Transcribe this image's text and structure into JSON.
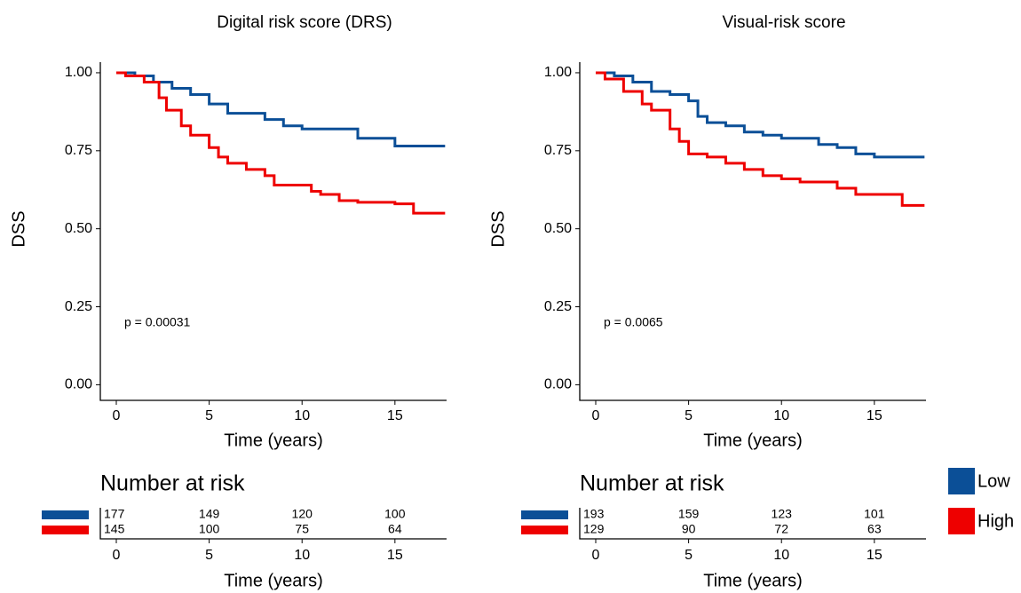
{
  "chart_data": [
    {
      "type": "step",
      "title": "Digital risk score (DRS)",
      "x_label": "Time (years)",
      "y_label": "DSS",
      "xlim": [
        -0.86,
        17.78
      ],
      "ylim": [
        -0.05,
        1.034
      ],
      "xticks": [
        0,
        5,
        10,
        15
      ],
      "yticks": [
        {
          "value": 0,
          "label": "0.00"
        },
        {
          "value": 0.25,
          "label": "0.25"
        },
        {
          "value": 0.5,
          "label": "0.50"
        },
        {
          "value": 0.75,
          "label": "0.75"
        },
        {
          "value": 1,
          "label": "1.00"
        }
      ],
      "annotation": "p = 0.00031",
      "series": [
        {
          "color": "#0b4f97",
          "x": [
            0,
            1,
            2,
            3,
            4,
            5,
            6,
            8,
            9,
            10,
            12,
            13,
            15,
            17.7
          ],
          "values": [
            1,
            0.99,
            0.97,
            0.95,
            0.93,
            0.9,
            0.87,
            0.85,
            0.83,
            0.82,
            0.82,
            0.79,
            0.765,
            0.765
          ]
        },
        {
          "color": "#ee0000",
          "x": [
            0,
            0.5,
            1.5,
            2.3,
            2.7,
            3.5,
            4,
            5,
            5.5,
            6,
            7,
            8,
            8.5,
            10,
            10.5,
            11,
            12,
            13,
            15,
            16,
            17.7
          ],
          "values": [
            1,
            0.99,
            0.97,
            0.92,
            0.88,
            0.83,
            0.8,
            0.76,
            0.73,
            0.71,
            0.69,
            0.67,
            0.64,
            0.64,
            0.62,
            0.61,
            0.59,
            0.585,
            0.58,
            0.55,
            0.55
          ]
        }
      ],
      "risk_table": {
        "title": "Number at risk",
        "x_label": "Time (years)",
        "times": [
          0,
          5,
          10,
          15
        ],
        "rows": [
          [
            177,
            149,
            120,
            100
          ],
          [
            145,
            100,
            75,
            64
          ]
        ]
      }
    },
    {
      "type": "step",
      "title": "Visual-risk score",
      "x_label": "Time (years)",
      "y_label": "DSS",
      "xlim": [
        -0.86,
        17.78
      ],
      "ylim": [
        -0.05,
        1.034
      ],
      "xticks": [
        0,
        5,
        10,
        15
      ],
      "yticks": [
        {
          "value": 0,
          "label": "0.00"
        },
        {
          "value": 0.25,
          "label": "0.25"
        },
        {
          "value": 0.5,
          "label": "0.50"
        },
        {
          "value": 0.75,
          "label": "0.75"
        },
        {
          "value": 1,
          "label": "1.00"
        }
      ],
      "annotation": "p = 0.0065",
      "series": [
        {
          "color": "#0b4f97",
          "x": [
            0,
            1,
            2,
            3,
            4,
            5,
            5.5,
            6,
            7,
            8,
            9,
            10,
            12,
            13,
            14,
            15,
            17.7
          ],
          "values": [
            1,
            0.99,
            0.97,
            0.94,
            0.93,
            0.91,
            0.86,
            0.84,
            0.83,
            0.81,
            0.8,
            0.79,
            0.77,
            0.76,
            0.74,
            0.73,
            0.73
          ]
        },
        {
          "color": "#ee0000",
          "x": [
            0,
            0.5,
            1.5,
            2.5,
            3,
            4,
            4.5,
            5,
            6,
            7,
            8,
            9,
            10,
            11,
            13,
            14,
            16,
            16.5,
            17.7
          ],
          "values": [
            1,
            0.98,
            0.94,
            0.9,
            0.88,
            0.82,
            0.78,
            0.74,
            0.73,
            0.71,
            0.69,
            0.67,
            0.66,
            0.65,
            0.63,
            0.61,
            0.61,
            0.575,
            0.575
          ]
        }
      ],
      "risk_table": {
        "title": "Number at risk",
        "x_label": "Time (years)",
        "times": [
          0,
          5,
          10,
          15
        ],
        "rows": [
          [
            193,
            159,
            123,
            101
          ],
          [
            129,
            90,
            72,
            63
          ]
        ]
      }
    }
  ],
  "legend": [
    {
      "name": "Low",
      "color": "#0b4f97"
    },
    {
      "name": "High",
      "color": "#ee0000"
    }
  ]
}
